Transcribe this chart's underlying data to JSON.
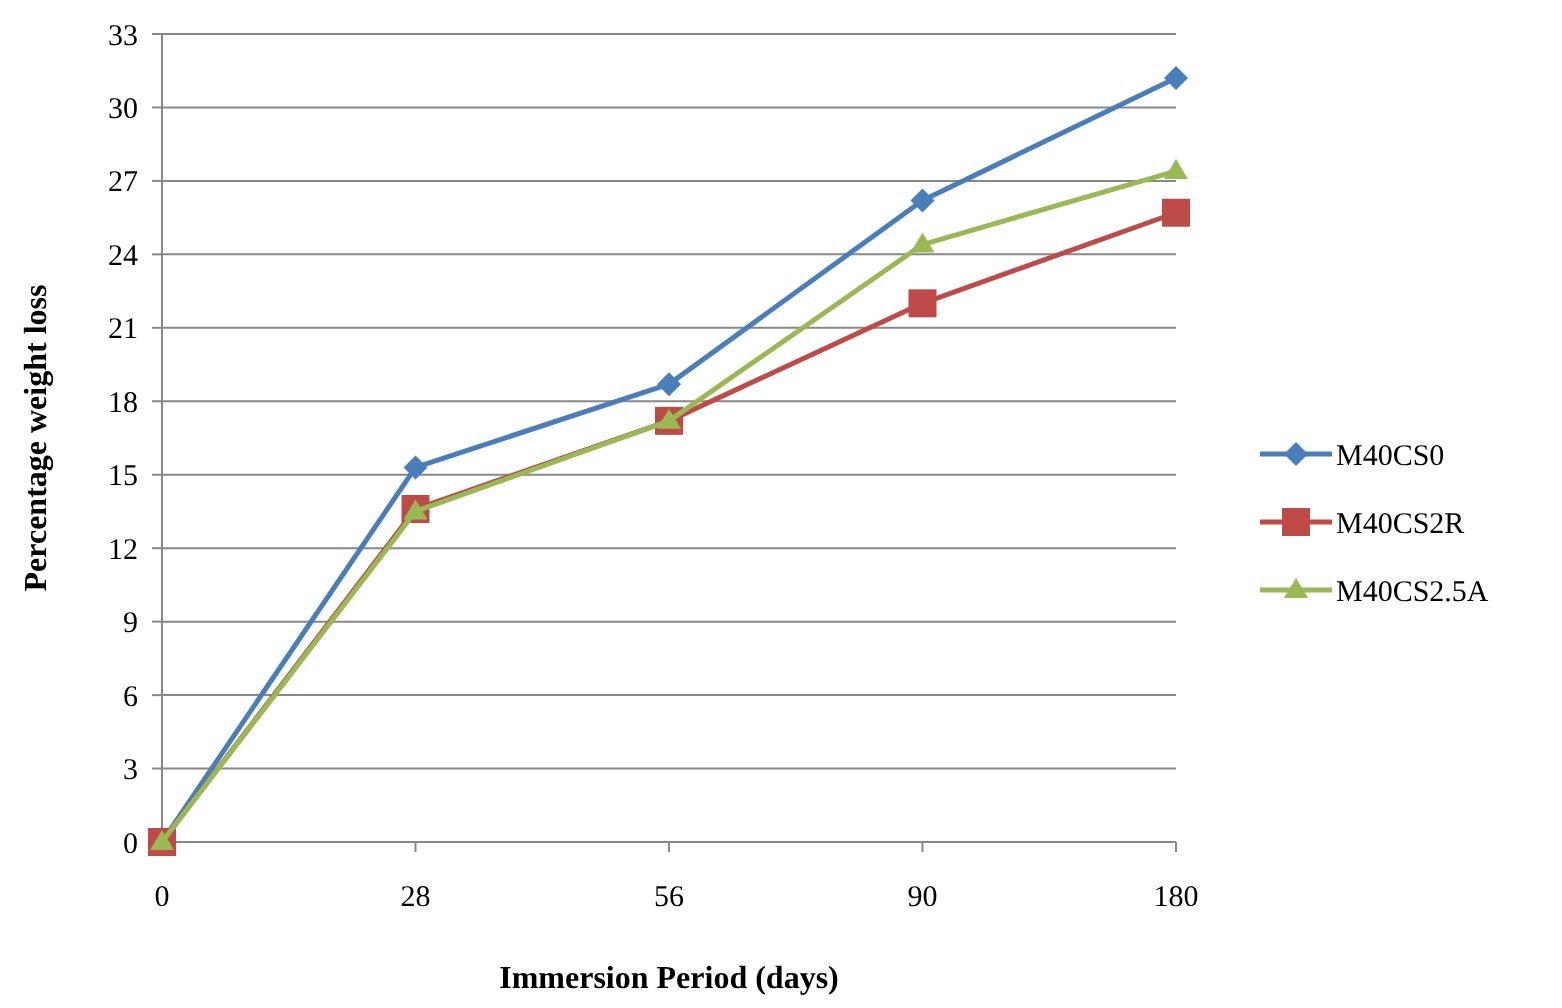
{
  "chart_data": {
    "type": "line",
    "xlabel": "Immersion Period (days)",
    "ylabel": "Percentage weight loss",
    "categories": [
      "0",
      "28",
      "56",
      "90",
      "180"
    ],
    "series": [
      {
        "name": "M40CS0",
        "color": "#4a7ebb",
        "marker": "diamond",
        "values": [
          0,
          15.3,
          18.7,
          26.2,
          31.2
        ]
      },
      {
        "name": "M40CS2R",
        "color": "#be4b48",
        "marker": "square",
        "values": [
          0,
          13.6,
          17.2,
          22.0,
          25.7
        ]
      },
      {
        "name": "M40CS2.5A",
        "color": "#98b954",
        "marker": "triangle",
        "values": [
          0,
          13.5,
          17.2,
          24.4,
          27.4
        ]
      }
    ],
    "ylim": [
      0,
      33
    ],
    "yticks": [
      0,
      3,
      6,
      9,
      12,
      15,
      18,
      21,
      24,
      27,
      30,
      33
    ],
    "grid": "y",
    "legend": "right"
  }
}
